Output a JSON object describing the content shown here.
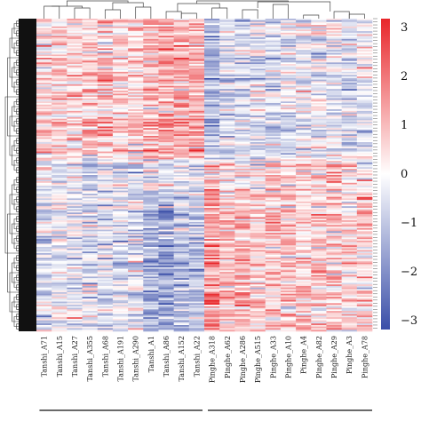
{
  "chart_data": {
    "type": "heatmap",
    "title": "",
    "xlabel": "",
    "ylabel": "",
    "columns": [
      "Tanshi_A71",
      "Tanshi_A15",
      "Tanshi_A27",
      "Tanshi_A355",
      "Tanshi_A68",
      "Tanshi_A191",
      "Tanshi_A290",
      "Tanshi_A1",
      "Tanshi_A86",
      "Tanshi_A152",
      "Tanshi_A22",
      "Pinghe_A318",
      "Pinghe_A62",
      "Pinghe_A286",
      "Pinghe_A515",
      "Pinghe_A33",
      "Pinghe_A10",
      "Pinghe_A4",
      "Pinghe_A82",
      "Pinghe_A29",
      "Pinghe_A3",
      "Pinghe_A78"
    ],
    "groups": [
      {
        "name": "",
        "columns": [
          "Tanshi_A71",
          "Tanshi_A15",
          "Tanshi_A27",
          "Tanshi_A355",
          "Tanshi_A68",
          "Tanshi_A191",
          "Tanshi_A290",
          "Tanshi_A1",
          "Tanshi_A86",
          "Tanshi_A152",
          "Tanshi_A22"
        ]
      },
      {
        "name": "",
        "columns": [
          "Pinghe_A318",
          "Pinghe_A62",
          "Pinghe_A286",
          "Pinghe_A515",
          "Pinghe_A33",
          "Pinghe_A10",
          "Pinghe_A4",
          "Pinghe_A82",
          "Pinghe_A29",
          "Pinghe_A3",
          "Pinghe_A78"
        ]
      }
    ],
    "color_scale": {
      "min": -3,
      "max": 3,
      "ticks": [
        "3",
        "2",
        "1",
        "0",
        "−1",
        "−2",
        "−3"
      ],
      "low_color": "#3a4ea8",
      "mid_color": "#ffffff",
      "high_color": "#e8262a"
    },
    "row_count": 200,
    "block_profiles": [
      {
        "rows_fraction": [
          0.0,
          0.45
        ],
        "means": [
          0.4,
          0.6,
          0.5,
          0.7,
          0.7,
          0.6,
          0.5,
          0.9,
          1.0,
          1.2,
          1.1,
          -1.2,
          -0.6,
          -0.5,
          -0.4,
          -0.6,
          -0.4,
          -0.3,
          -0.2,
          -0.3,
          -0.5,
          -0.4
        ]
      },
      {
        "rows_fraction": [
          0.45,
          0.55
        ],
        "means": [
          -0.2,
          -0.3,
          -0.4,
          -0.9,
          -0.6,
          -0.5,
          -0.4,
          -0.2,
          -0.3,
          -0.4,
          -0.5,
          0.6,
          0.3,
          0.2,
          0.1,
          1.0,
          0.4,
          0.5,
          0.6,
          0.6,
          0.5,
          0.4
        ]
      },
      {
        "rows_fraction": [
          0.55,
          1.0
        ],
        "means": [
          -0.4,
          -0.3,
          -0.3,
          -0.5,
          -0.5,
          -0.4,
          -0.4,
          -1.2,
          -1.4,
          -1.1,
          -1.0,
          1.4,
          0.8,
          0.9,
          0.7,
          0.6,
          0.6,
          0.5,
          0.5,
          0.6,
          0.4,
          0.5
        ]
      }
    ]
  }
}
